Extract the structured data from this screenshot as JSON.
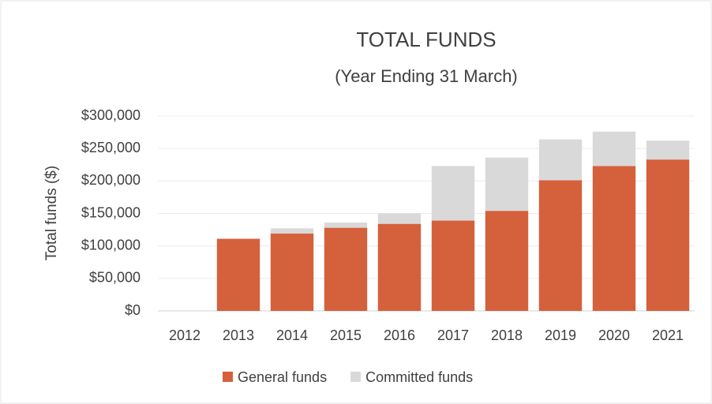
{
  "chart_data": {
    "type": "stacked_bar",
    "title": "TOTAL FUNDS",
    "subtitle": "(Year Ending 31 March)",
    "y_label": "Total funds ($)",
    "categories": [
      "2012",
      "2013",
      "2014",
      "2015",
      "2016",
      "2017",
      "2018",
      "2019",
      "2020",
      "2021"
    ],
    "series": [
      {
        "name": "General funds",
        "color": "#d5603c",
        "values": [
          0,
          111000,
          119000,
          128000,
          134000,
          139000,
          154000,
          201000,
          223000,
          233000
        ]
      },
      {
        "name": "Committed funds",
        "color": "#d9d9d9",
        "values": [
          0,
          0,
          8000,
          8000,
          16000,
          84000,
          82000,
          63000,
          53000,
          29000
        ]
      }
    ],
    "ylim": [
      0,
      300000
    ],
    "yticks": [
      {
        "value": 0,
        "label": "$0"
      },
      {
        "value": 50000,
        "label": "$50,000"
      },
      {
        "value": 100000,
        "label": "$100,000"
      },
      {
        "value": 150000,
        "label": "$150,000"
      },
      {
        "value": 200000,
        "label": "$200,000"
      },
      {
        "value": 250000,
        "label": "$250,000"
      },
      {
        "value": 300000,
        "label": "$300,000"
      }
    ],
    "grid": true,
    "legend": "bottom"
  }
}
